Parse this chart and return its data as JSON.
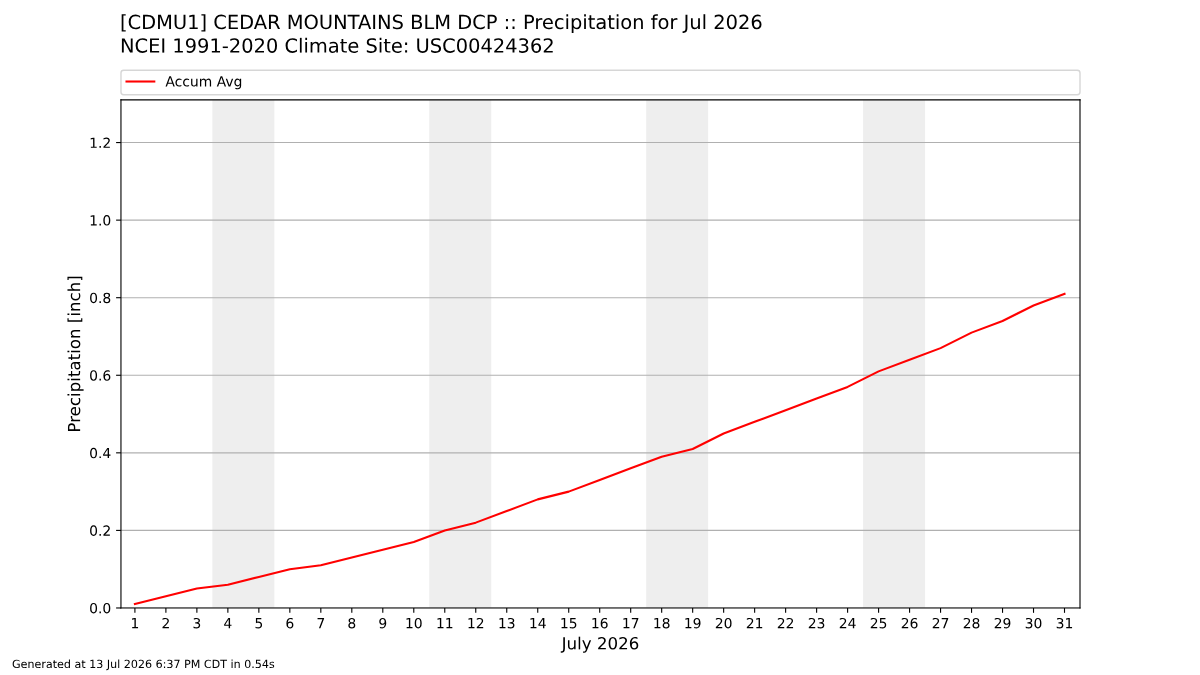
{
  "chart_data": {
    "type": "line",
    "title": "[CDMU1] CEDAR MOUNTAINS BLM DCP :: Precipitation for Jul 2026",
    "subtitle": "NCEI 1991-2020 Climate Site: USC00424362",
    "xlabel": "July 2026",
    "ylabel": "Precipitation [inch]",
    "x": [
      1,
      2,
      3,
      4,
      5,
      6,
      7,
      8,
      9,
      10,
      11,
      12,
      13,
      14,
      15,
      16,
      17,
      18,
      19,
      20,
      21,
      22,
      23,
      24,
      25,
      26,
      27,
      28,
      29,
      30,
      31
    ],
    "series": [
      {
        "name": "Accum Avg",
        "color": "#ff0000",
        "values": [
          0.01,
          0.03,
          0.05,
          0.06,
          0.08,
          0.1,
          0.11,
          0.13,
          0.15,
          0.17,
          0.2,
          0.22,
          0.25,
          0.28,
          0.3,
          0.33,
          0.36,
          0.39,
          0.41,
          0.45,
          0.48,
          0.51,
          0.54,
          0.57,
          0.61,
          0.64,
          0.67,
          0.71,
          0.74,
          0.78,
          0.81
        ]
      }
    ],
    "xlim": [
      0.55,
      31.5
    ],
    "xticks": [
      1,
      2,
      3,
      4,
      5,
      6,
      7,
      8,
      9,
      10,
      11,
      12,
      13,
      14,
      15,
      16,
      17,
      18,
      19,
      20,
      21,
      22,
      23,
      24,
      25,
      26,
      27,
      28,
      29,
      30,
      31
    ],
    "ylim": [
      0,
      1.31
    ],
    "yticks": [
      {
        "value": 0,
        "label": "0.0"
      },
      {
        "value": 0.2,
        "label": "0.2"
      },
      {
        "value": 0.4,
        "label": "0.4"
      },
      {
        "value": 0.6,
        "label": "0.6"
      },
      {
        "value": 0.8,
        "label": "0.8"
      },
      {
        "value": 1.0,
        "label": "1.0"
      },
      {
        "value": 1.2,
        "label": "1.2"
      }
    ],
    "bands": [
      {
        "axis": "x",
        "from": 3.5,
        "to": 5.5,
        "color": "#eeeeee"
      },
      {
        "axis": "x",
        "from": 10.5,
        "to": 12.5,
        "color": "#eeeeee"
      },
      {
        "axis": "x",
        "from": 17.5,
        "to": 19.5,
        "color": "#eeeeee"
      },
      {
        "axis": "x",
        "from": 24.5,
        "to": 26.5,
        "color": "#eeeeee"
      }
    ],
    "grid": "y",
    "legend": "top",
    "annotations": [
      "Generated at 13 Jul 2026 6:37 PM CDT in 0.54s"
    ]
  }
}
